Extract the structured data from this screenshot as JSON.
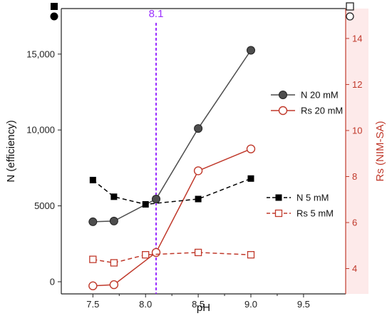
{
  "chart_data": {
    "type": "line",
    "xlabel": "pH",
    "ylabel_left": "N (efficiency)",
    "ylabel_right": "Rs (NIM-SA)",
    "xlim": [
      7.2,
      9.9
    ],
    "ylim_left": [
      -800,
      18000
    ],
    "ylim_right": [
      2.9,
      15.3
    ],
    "x_ticks": [
      7.5,
      8.0,
      8.5,
      9.0,
      9.5
    ],
    "x_tick_labels": [
      "7.5",
      "8.0",
      "8.5",
      "9.0",
      "9.5"
    ],
    "y_left_ticks": [
      0,
      5000,
      10000,
      15000
    ],
    "y_left_tick_labels": [
      "0",
      "5000",
      "10,000",
      "15,000"
    ],
    "y_right_ticks": [
      4,
      6,
      8,
      10,
      12,
      14
    ],
    "y_right_tick_labels": [
      "4",
      "6",
      "8",
      "10",
      "12",
      "14"
    ],
    "vline": {
      "x": 8.1,
      "label": "8.1",
      "color": "#9b30ff"
    },
    "grid": false,
    "series": [
      {
        "name": "N 20 mM",
        "axis": "left",
        "marker": "circle-filled",
        "line": "solid",
        "color": "#4d4d4d",
        "x": [
          7.5,
          7.7,
          8.1,
          8.5,
          9.0
        ],
        "y": [
          3950,
          4000,
          5450,
          10100,
          15250
        ]
      },
      {
        "name": "Rs 20 mM",
        "axis": "right",
        "marker": "circle-open",
        "line": "solid",
        "color": "#c0392b",
        "x": [
          7.5,
          7.7,
          8.1,
          8.5,
          9.0
        ],
        "y": [
          3.25,
          3.3,
          4.7,
          8.25,
          9.2
        ]
      },
      {
        "name": "N 5 mM",
        "axis": "left",
        "marker": "square-filled",
        "line": "dashed",
        "color": "#000000",
        "x": [
          7.5,
          7.7,
          8.0,
          8.5,
          9.0
        ],
        "y": [
          6700,
          5600,
          5100,
          5450,
          6800
        ]
      },
      {
        "name": "Rs 5 mM",
        "axis": "right",
        "marker": "square-open",
        "line": "dashed",
        "color": "#c0392b",
        "x": [
          7.5,
          7.7,
          8.0,
          8.5,
          9.0
        ],
        "y": [
          4.4,
          4.25,
          4.6,
          4.7,
          4.6
        ]
      }
    ],
    "legends": [
      {
        "placement": "upper-right",
        "entries": [
          "N 20 mM",
          "Rs 20 mM"
        ]
      },
      {
        "placement": "lower-right",
        "entries": [
          "N 5 mM",
          "Rs 5 mM"
        ]
      }
    ],
    "corner_symbols": [
      {
        "placement": "top-left",
        "markers": [
          "square-filled",
          "circle-filled"
        ]
      },
      {
        "placement": "top-right",
        "markers": [
          "square-open",
          "circle-open"
        ]
      }
    ]
  }
}
